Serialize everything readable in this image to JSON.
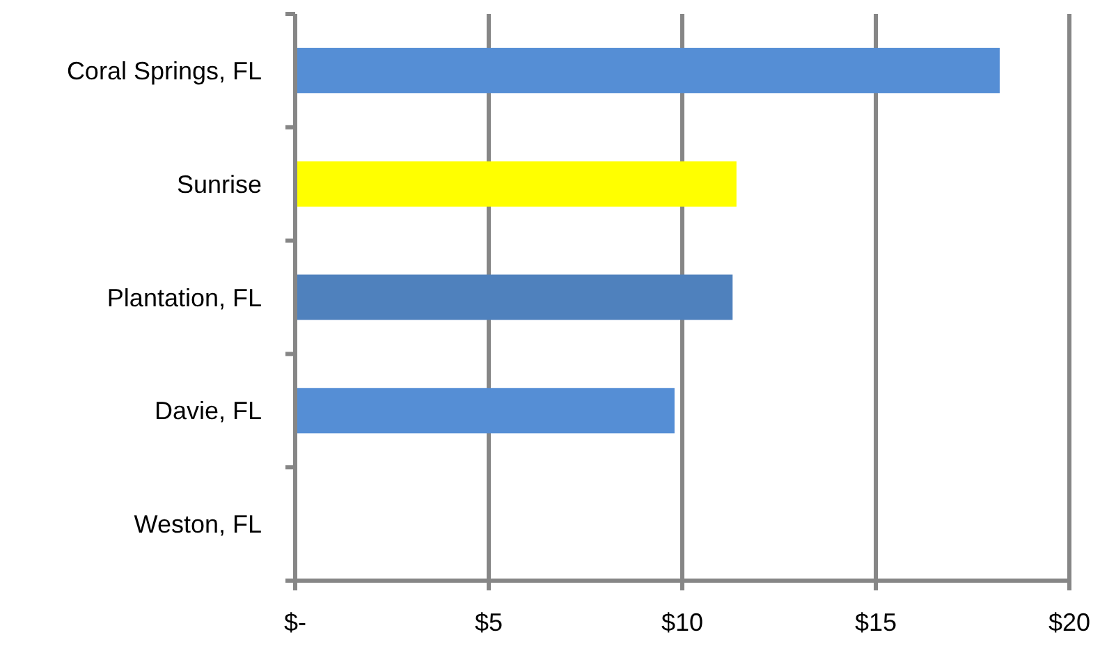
{
  "chart_data": {
    "type": "bar",
    "orientation": "horizontal",
    "categories": [
      "Coral Springs, FL",
      "Sunrise",
      "Plantation, FL",
      "Davie, FL",
      "Weston, FL"
    ],
    "values": [
      18.2,
      11.4,
      11.3,
      9.8,
      null
    ],
    "colors": [
      "#558ed5",
      "#ffff00",
      "#4f81bd",
      "#558ed5",
      null
    ],
    "xlim": [
      0,
      20
    ],
    "xticks": [
      {
        "value": 0,
        "label": "$-"
      },
      {
        "value": 5,
        "label": "$5"
      },
      {
        "value": 10,
        "label": "$10"
      },
      {
        "value": 15,
        "label": "$15"
      },
      {
        "value": 20,
        "label": "$20"
      }
    ],
    "grid": "x"
  }
}
